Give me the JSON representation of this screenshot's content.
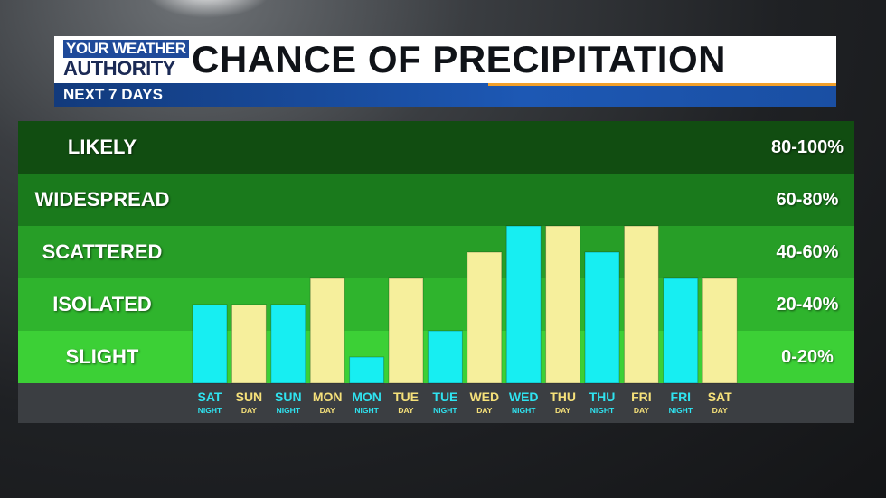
{
  "header": {
    "logo_line1": "YOUR WEATHER",
    "logo_line2": "AUTHORITY",
    "title": "CHANCE OF PRECIPITATION",
    "subtitle": "NEXT 7 DAYS"
  },
  "colors": {
    "night_bar": "#17eef2",
    "day_bar": "#f6ef9c",
    "night_label": "#2fe3f0",
    "day_label": "#f6e17a",
    "band_likely": "#114d11",
    "band_widespread": "#1a7a1c",
    "band_scattered": "#279e27",
    "band_isolated": "#2fb42d",
    "band_slight": "#3cd036"
  },
  "bands": [
    {
      "label": "LIKELY",
      "range": "80-100%",
      "min": 80,
      "max": 100,
      "color": "#114d11"
    },
    {
      "label": "WIDESPREAD",
      "range": "60-80%",
      "min": 60,
      "max": 80,
      "color": "#1a7a1c"
    },
    {
      "label": "SCATTERED",
      "range": "40-60%",
      "min": 40,
      "max": 60,
      "color": "#279e27"
    },
    {
      "label": "ISOLATED",
      "range": "20-40%",
      "min": 20,
      "max": 40,
      "color": "#2fb42d"
    },
    {
      "label": "SLIGHT",
      "range": "0-20%",
      "min": 0,
      "max": 20,
      "color": "#3cd036"
    }
  ],
  "chart_data": {
    "type": "bar",
    "ylim": [
      0,
      100
    ],
    "categories": [
      {
        "day": "SAT",
        "period": "NIGHT"
      },
      {
        "day": "SUN",
        "period": "DAY"
      },
      {
        "day": "SUN",
        "period": "NIGHT"
      },
      {
        "day": "MON",
        "period": "DAY"
      },
      {
        "day": "MON",
        "period": "NIGHT"
      },
      {
        "day": "TUE",
        "period": "DAY"
      },
      {
        "day": "TUE",
        "period": "NIGHT"
      },
      {
        "day": "WED",
        "period": "DAY"
      },
      {
        "day": "WED",
        "period": "NIGHT"
      },
      {
        "day": "THU",
        "period": "DAY"
      },
      {
        "day": "THU",
        "period": "NIGHT"
      },
      {
        "day": "FRI",
        "period": "DAY"
      },
      {
        "day": "FRI",
        "period": "NIGHT"
      },
      {
        "day": "SAT",
        "period": "DAY"
      }
    ],
    "values": [
      30,
      30,
      30,
      40,
      10,
      40,
      20,
      50,
      60,
      60,
      50,
      60,
      40,
      40
    ]
  }
}
